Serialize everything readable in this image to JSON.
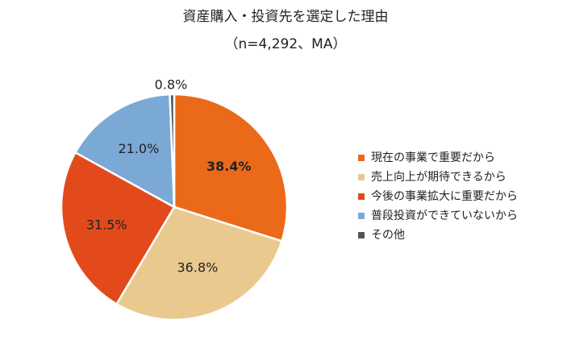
{
  "chart_data": {
    "type": "pie",
    "title": "資産購入・投資先を選定した理由",
    "subtitle": "（n=4,292、MA）",
    "slices": [
      {
        "label": "現在の事業で重要だから",
        "value": 38.4,
        "display": "38.4%",
        "color": "#ea6a1a",
        "bold": true
      },
      {
        "label": "売上向上が期待できるから",
        "value": 36.8,
        "display": "36.8%",
        "color": "#eac98e",
        "bold": false
      },
      {
        "label": "今後の事業拡大に重要だから",
        "value": 31.5,
        "display": "31.5%",
        "color": "#e24a1c",
        "bold": false
      },
      {
        "label": "普段投資ができていないから",
        "value": 21.0,
        "display": "21.0%",
        "color": "#7ba9d6",
        "bold": false
      },
      {
        "label": "その他",
        "value": 0.8,
        "display": "0.8%",
        "color": "#555555",
        "bold": false
      }
    ],
    "legend_position": "right"
  }
}
